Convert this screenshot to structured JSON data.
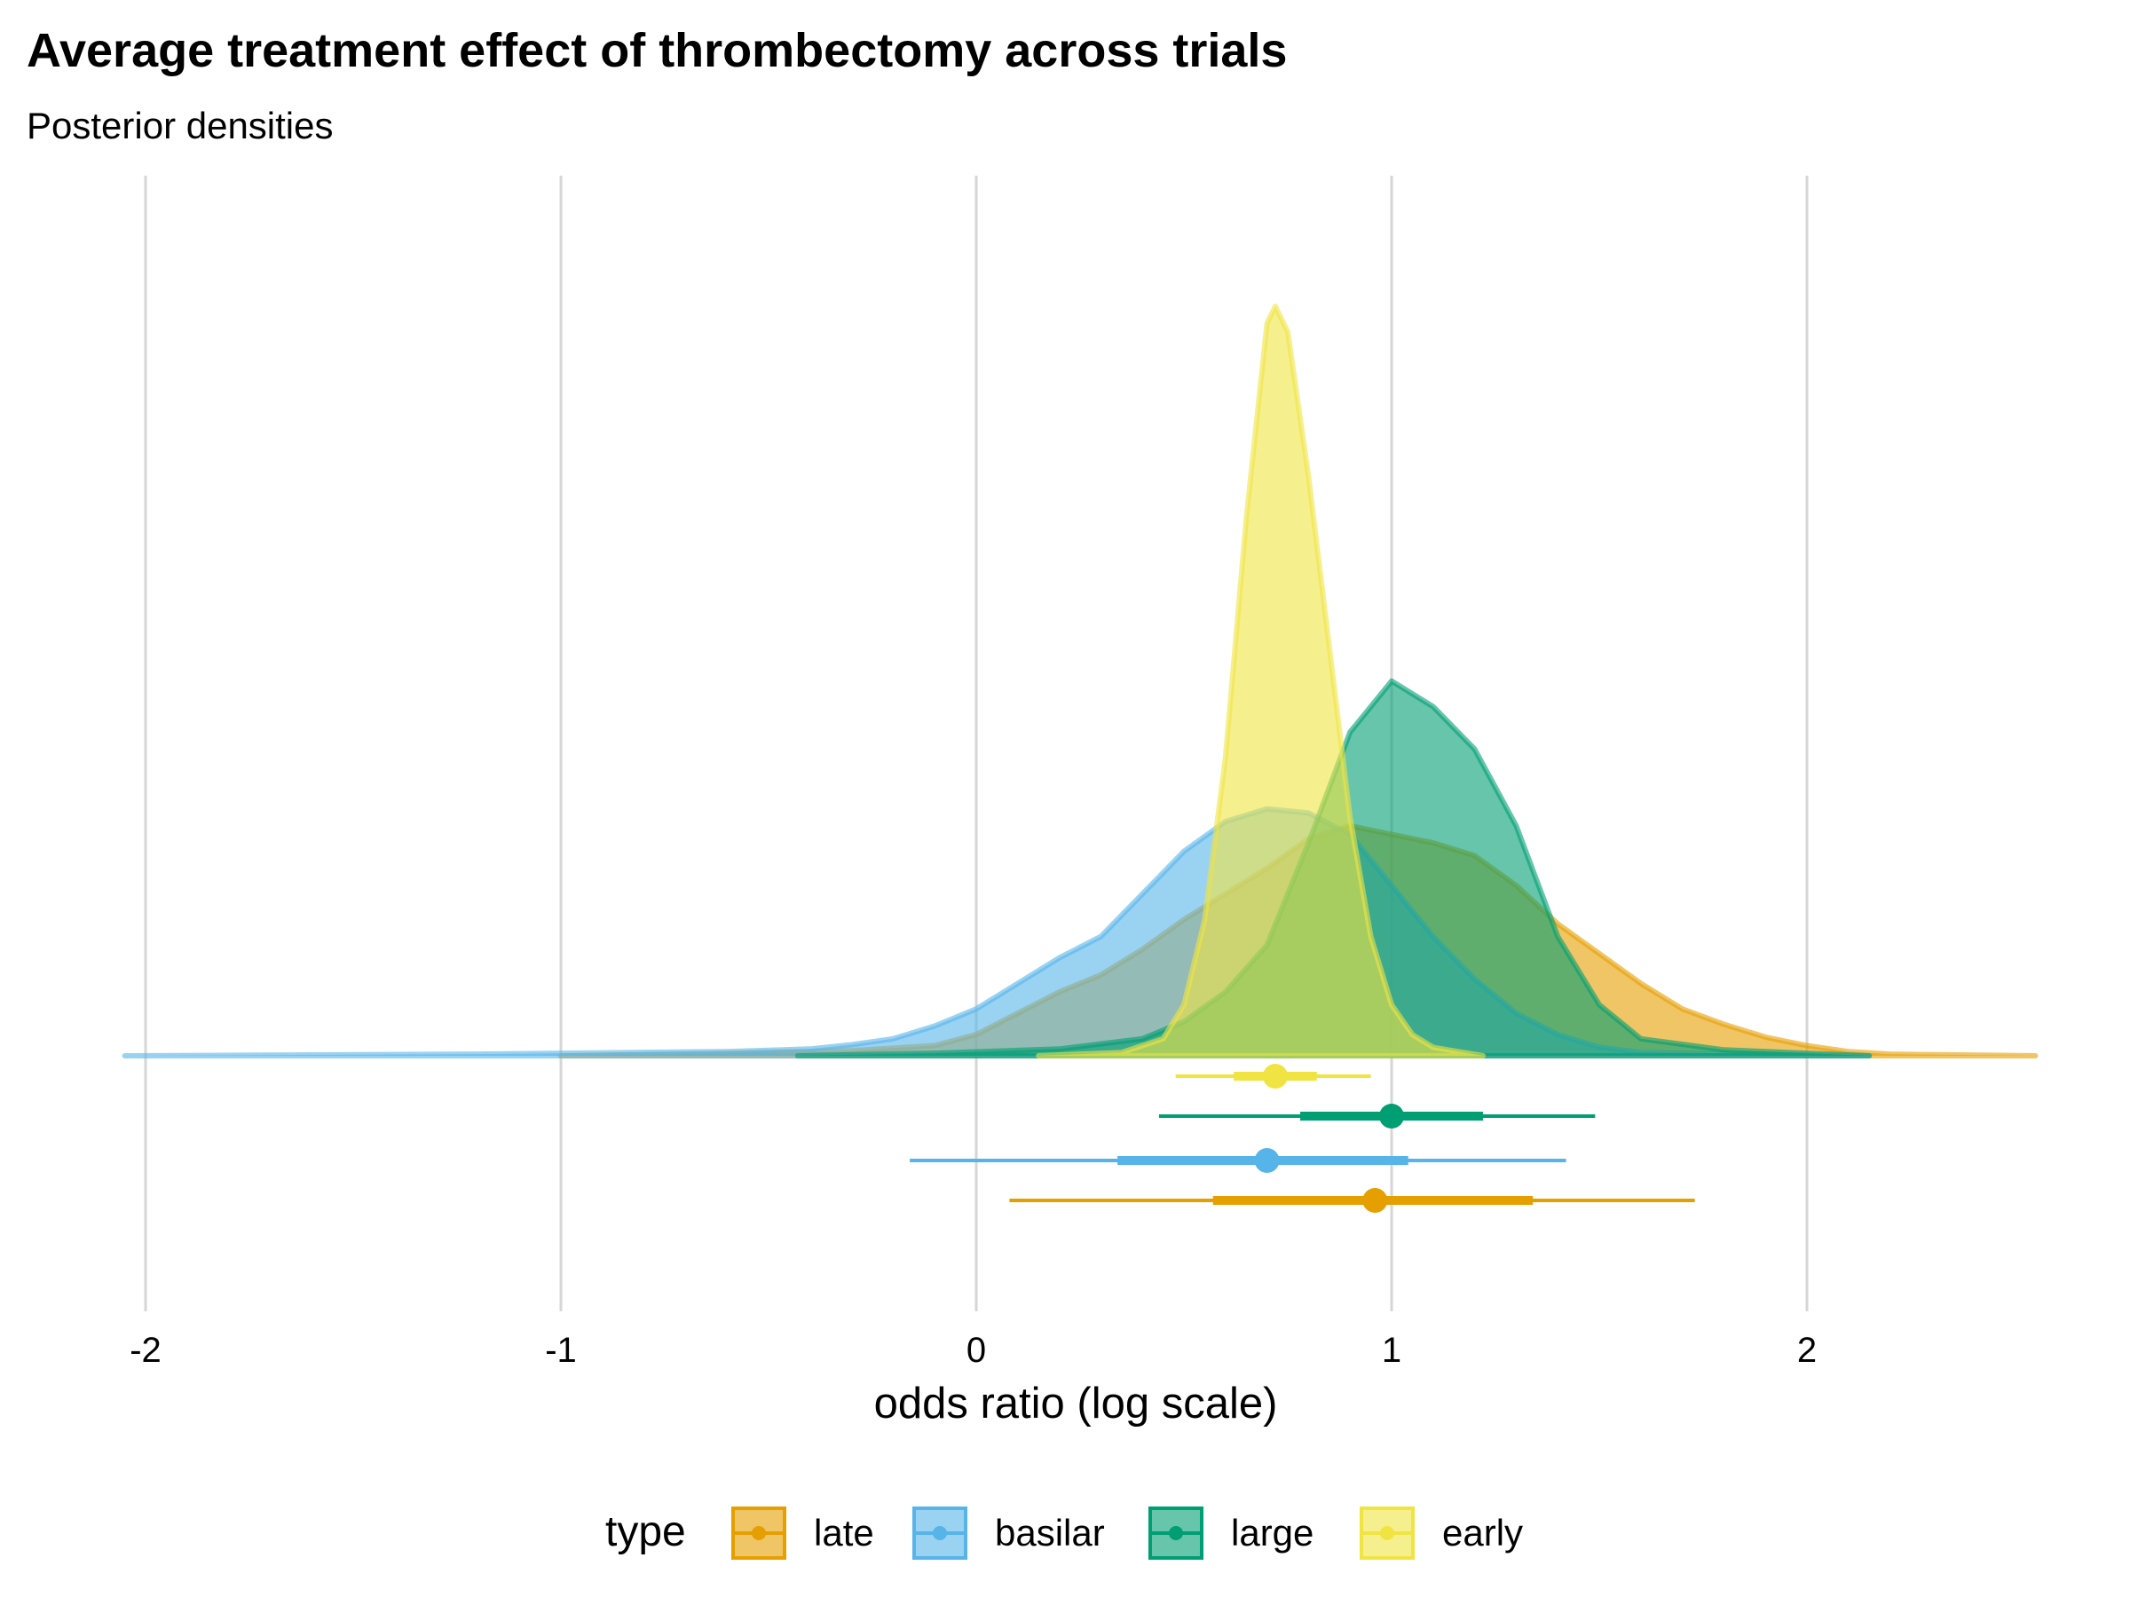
{
  "title": "Average treatment effect of thrombectomy across trials",
  "subtitle": "Posterior densities",
  "chart_data": {
    "type": "area",
    "xlabel": "odds ratio (log scale)",
    "ylabel": "",
    "xlim": [
      -2.05,
      2.55
    ],
    "xticks": [
      -2,
      -1,
      0,
      1,
      2
    ],
    "xtick_labels": [
      "-2",
      "-1",
      "0",
      "1",
      "2"
    ],
    "grid": "vertical major gridlines",
    "legend": {
      "title": "type",
      "position": "bottom"
    },
    "series": [
      {
        "name": "late",
        "color": "#E69F00",
        "density": [
          [
            -1.0,
            0.0
          ],
          [
            -0.6,
            0.003
          ],
          [
            -0.3,
            0.006
          ],
          [
            -0.1,
            0.012
          ],
          [
            0.0,
            0.025
          ],
          [
            0.1,
            0.05
          ],
          [
            0.2,
            0.075
          ],
          [
            0.3,
            0.095
          ],
          [
            0.4,
            0.125
          ],
          [
            0.5,
            0.16
          ],
          [
            0.6,
            0.19
          ],
          [
            0.7,
            0.22
          ],
          [
            0.8,
            0.255
          ],
          [
            0.9,
            0.27
          ],
          [
            1.0,
            0.26
          ],
          [
            1.1,
            0.25
          ],
          [
            1.2,
            0.235
          ],
          [
            1.3,
            0.2
          ],
          [
            1.4,
            0.155
          ],
          [
            1.5,
            0.12
          ],
          [
            1.6,
            0.085
          ],
          [
            1.7,
            0.055
          ],
          [
            1.8,
            0.037
          ],
          [
            1.9,
            0.022
          ],
          [
            2.0,
            0.012
          ],
          [
            2.1,
            0.005
          ],
          [
            2.2,
            0.002
          ],
          [
            2.55,
            0.0
          ]
        ],
        "interval": {
          "point": 0.96,
          "inner": [
            0.57,
            1.34
          ],
          "outer": [
            0.08,
            1.73
          ]
        }
      },
      {
        "name": "basilar",
        "color": "#56B4E9",
        "density": [
          [
            -2.05,
            0.0
          ],
          [
            -1.2,
            0.002
          ],
          [
            -0.6,
            0.005
          ],
          [
            -0.4,
            0.008
          ],
          [
            -0.3,
            0.013
          ],
          [
            -0.2,
            0.02
          ],
          [
            -0.1,
            0.035
          ],
          [
            0.0,
            0.055
          ],
          [
            0.1,
            0.085
          ],
          [
            0.2,
            0.115
          ],
          [
            0.3,
            0.14
          ],
          [
            0.4,
            0.19
          ],
          [
            0.5,
            0.24
          ],
          [
            0.6,
            0.275
          ],
          [
            0.7,
            0.29
          ],
          [
            0.8,
            0.285
          ],
          [
            0.9,
            0.26
          ],
          [
            1.0,
            0.2
          ],
          [
            1.1,
            0.14
          ],
          [
            1.2,
            0.09
          ],
          [
            1.3,
            0.05
          ],
          [
            1.4,
            0.025
          ],
          [
            1.5,
            0.01
          ],
          [
            1.6,
            0.004
          ],
          [
            2.15,
            0.0
          ]
        ],
        "interval": {
          "point": 0.7,
          "inner": [
            0.34,
            1.04
          ],
          "outer": [
            -0.16,
            1.42
          ]
        }
      },
      {
        "name": "large",
        "color": "#009E73",
        "density": [
          [
            -0.43,
            0.0
          ],
          [
            -0.1,
            0.003
          ],
          [
            0.2,
            0.008
          ],
          [
            0.4,
            0.02
          ],
          [
            0.5,
            0.04
          ],
          [
            0.6,
            0.075
          ],
          [
            0.7,
            0.13
          ],
          [
            0.8,
            0.25
          ],
          [
            0.9,
            0.38
          ],
          [
            1.0,
            0.44
          ],
          [
            1.1,
            0.41
          ],
          [
            1.2,
            0.36
          ],
          [
            1.3,
            0.27
          ],
          [
            1.4,
            0.14
          ],
          [
            1.5,
            0.06
          ],
          [
            1.6,
            0.02
          ],
          [
            1.8,
            0.007
          ],
          [
            2.15,
            0.0
          ]
        ],
        "interval": {
          "point": 1.0,
          "inner": [
            0.78,
            1.22
          ],
          "outer": [
            0.44,
            1.49
          ]
        }
      },
      {
        "name": "early",
        "color": "#F0E442",
        "density": [
          [
            0.15,
            0.0
          ],
          [
            0.35,
            0.004
          ],
          [
            0.45,
            0.02
          ],
          [
            0.5,
            0.06
          ],
          [
            0.55,
            0.16
          ],
          [
            0.6,
            0.35
          ],
          [
            0.65,
            0.63
          ],
          [
            0.7,
            0.86
          ],
          [
            0.72,
            0.88
          ],
          [
            0.75,
            0.85
          ],
          [
            0.8,
            0.68
          ],
          [
            0.85,
            0.48
          ],
          [
            0.9,
            0.28
          ],
          [
            0.95,
            0.14
          ],
          [
            1.0,
            0.06
          ],
          [
            1.05,
            0.025
          ],
          [
            1.1,
            0.01
          ],
          [
            1.22,
            0.0
          ]
        ],
        "interval": {
          "point": 0.72,
          "inner": [
            0.62,
            0.82
          ],
          "outer": [
            0.48,
            0.95
          ]
        }
      }
    ]
  }
}
